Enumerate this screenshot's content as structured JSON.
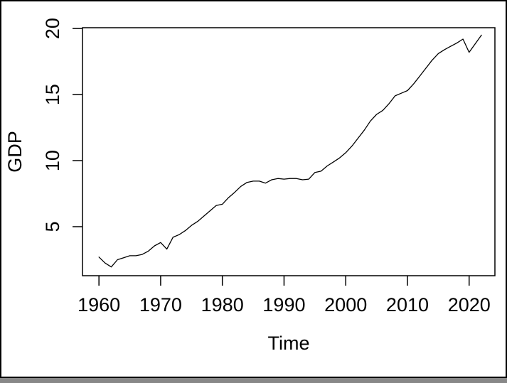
{
  "window": {
    "background": "#ffffff",
    "frame_color": "#000000"
  },
  "chart_data": {
    "type": "line",
    "title": "",
    "xlabel": "Time",
    "ylabel": "GDP",
    "series_name": "GDP",
    "x": [
      1960,
      1961,
      1962,
      1963,
      1964,
      1965,
      1966,
      1967,
      1968,
      1969,
      1970,
      1971,
      1972,
      1973,
      1974,
      1975,
      1976,
      1977,
      1978,
      1979,
      1980,
      1981,
      1982,
      1983,
      1984,
      1985,
      1986,
      1987,
      1988,
      1989,
      1990,
      1991,
      1992,
      1993,
      1994,
      1995,
      1996,
      1997,
      1998,
      1999,
      2000,
      2001,
      2002,
      2003,
      2004,
      2005,
      2006,
      2007,
      2008,
      2009,
      2010,
      2011,
      2012,
      2013,
      2014,
      2015,
      2016,
      2017,
      2018,
      2019,
      2020,
      2021,
      2022
    ],
    "values": [
      2.7,
      2.25,
      1.95,
      2.5,
      2.65,
      2.8,
      2.8,
      2.9,
      3.15,
      3.55,
      3.8,
      3.3,
      4.2,
      4.4,
      4.7,
      5.1,
      5.4,
      5.8,
      6.2,
      6.6,
      6.7,
      7.2,
      7.6,
      8.05,
      8.35,
      8.45,
      8.45,
      8.3,
      8.55,
      8.65,
      8.6,
      8.65,
      8.65,
      8.55,
      8.6,
      9.1,
      9.2,
      9.6,
      9.9,
      10.2,
      10.6,
      11.1,
      11.7,
      12.3,
      13.0,
      13.5,
      13.8,
      14.3,
      14.9,
      15.1,
      15.3,
      15.8,
      16.4,
      17.0,
      17.6,
      18.1,
      18.4,
      18.65,
      18.9,
      19.2,
      18.2,
      18.85,
      19.5
    ],
    "x_ticks": [
      1960,
      1970,
      1980,
      1990,
      2000,
      2010,
      2020
    ],
    "y_ticks": [
      5,
      10,
      15,
      20
    ],
    "xlim": [
      1957.33,
      2024.18
    ],
    "ylim": [
      1.29,
      20.06
    ],
    "grid": false,
    "legend": "none",
    "line_color": "#000000",
    "axis_color": "#000000"
  }
}
